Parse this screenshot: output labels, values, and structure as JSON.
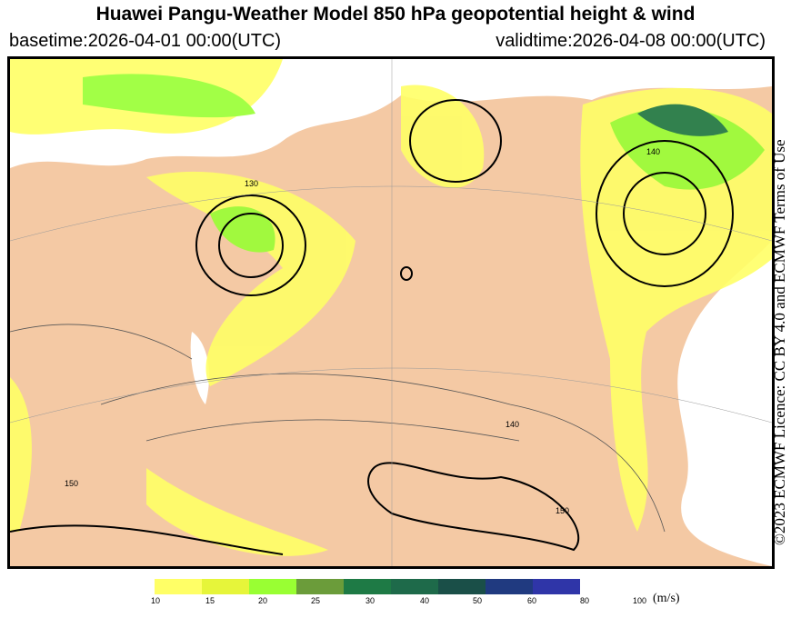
{
  "title": "Huawei Pangu-Weather Model 850 hPa geopotential height & wind",
  "basetime": "basetime:2026-04-01 00:00(UTC)",
  "validtime": "validtime:2026-04-08 00:00(UTC)",
  "licence": "©2023 ECMWF Licence: CC BY 4.0 and ECMWF Terms of Use",
  "map": {
    "land_color": "#f4c9a4",
    "sea_color": "#ffffff",
    "contour_labels": [
      "130",
      "140",
      "150",
      "140",
      "150"
    ]
  },
  "colorbar": {
    "unit": "(m/s)",
    "ticks": [
      "10",
      "15",
      "20",
      "25",
      "30",
      "40",
      "50",
      "60",
      "80",
      "100"
    ],
    "colors": [
      "#ffff66",
      "#e6f53a",
      "#99ff33",
      "#6b9c3a",
      "#1e7a45",
      "#1e6a4a",
      "#1a4f48",
      "#203a80",
      "#2f35a8"
    ]
  }
}
